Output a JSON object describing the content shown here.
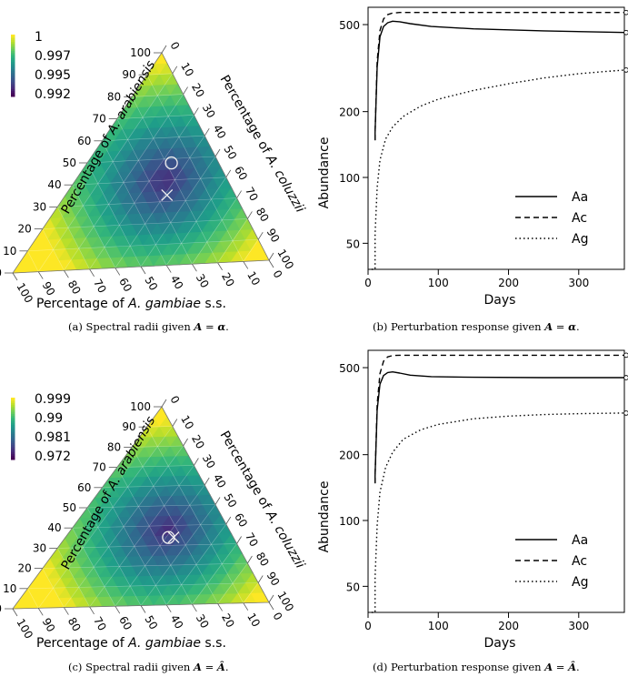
{
  "colors": {
    "viridis": [
      "#440154",
      "#482878",
      "#3e4a89",
      "#31688e",
      "#26828e",
      "#1f9e89",
      "#35b779",
      "#6ece58",
      "#b5de2b",
      "#fde725"
    ]
  },
  "chart_data": [
    {
      "type": "ternary-heatmap",
      "panel": "a",
      "caption": "(a) Spectral radii given A = α.",
      "colorbar_labels": [
        "1",
        "0.997",
        "0.995",
        "0.992"
      ],
      "axis_labels": {
        "left": "Percentage of A. arabiensis",
        "right": "Percentage of A. coluzzii",
        "bottom": "Percentage of A. gambiae s.s."
      },
      "ticks": [
        0,
        10,
        20,
        30,
        40,
        50,
        60,
        70,
        80,
        90,
        100
      ],
      "markers": {
        "circle": {
          "arabiensis": 48,
          "coluzzii": 34,
          "gambiae": 18
        },
        "cross": {
          "arabiensis": 33,
          "coluzzii": 41,
          "gambiae": 26
        }
      },
      "min_location": {
        "arabiensis": 40,
        "coluzzii": 36,
        "gambiae": 24
      }
    },
    {
      "type": "line",
      "panel": "b",
      "caption": "(b) Perturbation response given A = α.",
      "xlabel": "Days",
      "ylabel": "Abundance",
      "yscale": "log",
      "xlim": [
        0,
        365
      ],
      "ylim": [
        38,
        600
      ],
      "xticks": [
        0,
        100,
        200,
        300
      ],
      "yticks": [
        50,
        100,
        200,
        500
      ],
      "series": [
        {
          "name": "Aa",
          "style": "solid",
          "x": [
            10,
            10,
            13,
            17,
            22,
            28,
            35,
            45,
            60,
            90,
            150,
            250,
            365
          ],
          "y": [
            148,
            160,
            320,
            440,
            490,
            510,
            518,
            515,
            505,
            490,
            478,
            468,
            460
          ]
        },
        {
          "name": "Ac",
          "style": "dashed",
          "x": [
            10,
            10,
            13,
            17,
            22,
            28,
            35,
            45,
            60,
            100,
            200,
            365
          ],
          "y": [
            148,
            160,
            340,
            470,
            530,
            555,
            565,
            568,
            568,
            568,
            568,
            568
          ]
        },
        {
          "name": "Ag",
          "style": "dotted",
          "x": [
            5,
            10,
            10,
            13,
            17,
            25,
            35,
            50,
            75,
            100,
            150,
            200,
            250,
            300,
            365
          ],
          "y": [
            38,
            38,
            55,
            90,
            120,
            150,
            170,
            190,
            212,
            228,
            250,
            268,
            285,
            298,
            310
          ]
        }
      ]
    },
    {
      "type": "ternary-heatmap",
      "panel": "c",
      "caption": "(c) Spectral radii given A = Â.",
      "colorbar_labels": [
        "0.999",
        "0.99",
        "0.981",
        "0.972"
      ],
      "axis_labels": {
        "left": "Percentage of A. arabiensis",
        "right": "Percentage of A. coluzzii",
        "bottom": "Percentage of A. gambiae s.s."
      },
      "ticks": [
        0,
        10,
        20,
        30,
        40,
        50,
        60,
        70,
        80,
        90,
        100
      ],
      "markers": {
        "circle": {
          "arabiensis": 34,
          "coluzzii": 41,
          "gambiae": 25
        },
        "cross": {
          "arabiensis": 34,
          "coluzzii": 43,
          "gambiae": 23
        }
      },
      "min_location": {
        "arabiensis": 38,
        "coluzzii": 38,
        "gambiae": 24
      }
    },
    {
      "type": "line",
      "panel": "d",
      "caption": "(d) Perturbation response given A = Â.",
      "xlabel": "Days",
      "ylabel": "Abundance",
      "yscale": "log",
      "xlim": [
        0,
        365
      ],
      "ylim": [
        38,
        600
      ],
      "xticks": [
        0,
        100,
        200,
        300
      ],
      "yticks": [
        50,
        100,
        200,
        500
      ],
      "series": [
        {
          "name": "Aa",
          "style": "solid",
          "x": [
            10,
            10,
            13,
            17,
            22,
            28,
            35,
            45,
            60,
            90,
            150,
            250,
            365
          ],
          "y": [
            148,
            160,
            320,
            420,
            460,
            475,
            478,
            472,
            462,
            455,
            452,
            450,
            450
          ]
        },
        {
          "name": "Ac",
          "style": "dashed",
          "x": [
            10,
            10,
            13,
            17,
            22,
            28,
            35,
            45,
            60,
            100,
            200,
            365
          ],
          "y": [
            148,
            160,
            340,
            470,
            535,
            560,
            568,
            570,
            570,
            570,
            570,
            570
          ]
        },
        {
          "name": "Ag",
          "style": "dotted",
          "x": [
            5,
            10,
            10,
            13,
            17,
            25,
            35,
            50,
            75,
            100,
            150,
            200,
            250,
            300,
            365
          ],
          "y": [
            38,
            38,
            55,
            95,
            135,
            175,
            205,
            235,
            260,
            275,
            292,
            300,
            305,
            308,
            310
          ]
        }
      ]
    }
  ]
}
